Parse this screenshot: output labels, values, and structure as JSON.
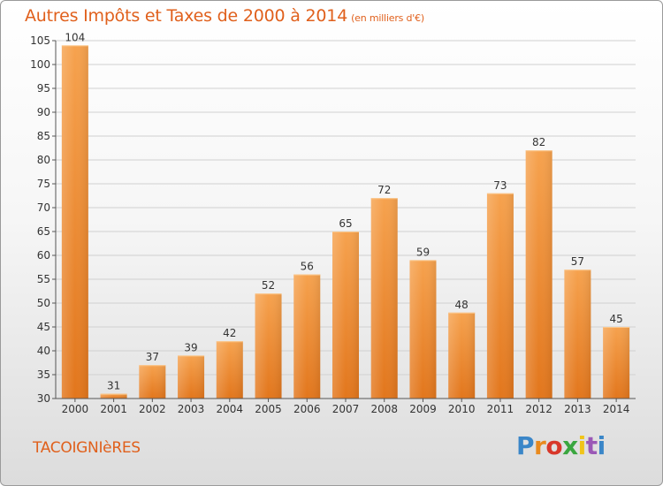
{
  "header": {
    "title": "Autres Impôts et Taxes de 2000 à 2014",
    "subtitle": "(en milliers d'€)"
  },
  "footer": {
    "commune": "TACOIGNIèRES",
    "logo": {
      "text": "Proxiti",
      "icon": "proxiti-logo"
    }
  },
  "colors": {
    "bar_top": "#f6a24e",
    "bar_bottom": "#e2761c",
    "title": "#e0601c",
    "grid": "#d0d0d0"
  },
  "chart_data": {
    "type": "bar",
    "title": "Autres Impôts et Taxes de 2000 à 2014",
    "subtitle": "(en milliers d'€)",
    "categories": [
      "2000",
      "2001",
      "2002",
      "2003",
      "2004",
      "2005",
      "2006",
      "2007",
      "2008",
      "2009",
      "2010",
      "2011",
      "2012",
      "2013",
      "2014"
    ],
    "values": [
      104,
      31,
      37,
      39,
      42,
      52,
      56,
      65,
      72,
      59,
      48,
      73,
      82,
      57,
      45
    ],
    "ylim": [
      30,
      105
    ],
    "yticks": [
      30,
      35,
      40,
      45,
      50,
      55,
      60,
      65,
      70,
      75,
      80,
      85,
      90,
      95,
      100,
      105
    ],
    "grid": true,
    "legend": "none"
  }
}
